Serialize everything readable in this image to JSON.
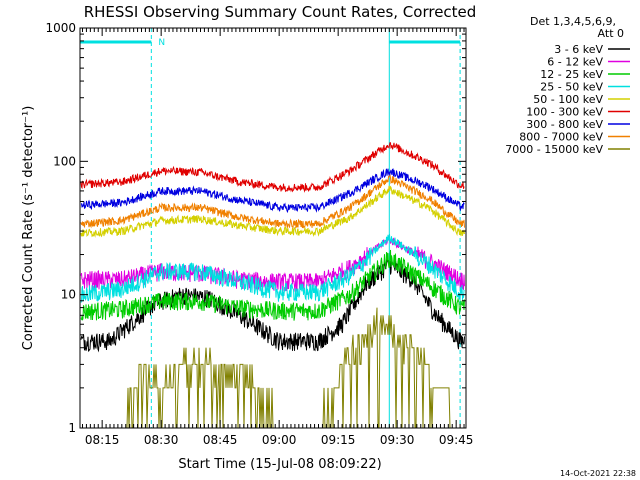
{
  "chart_data": {
    "type": "line",
    "title": "RHESSI Observing Summary Count Rates, Corrected",
    "xlabel": "Start Time (15-Jul-08 08:09:22)",
    "ylabel": "Corrected Count Rate (s⁻¹ detector⁻¹)",
    "y_scale": "log",
    "ylim": [
      1,
      1000
    ],
    "xlim": [
      "08:09:22",
      "09:47:30"
    ],
    "yticks": [
      "1",
      "10",
      "100",
      "1000"
    ],
    "xticks": [
      "08:15",
      "08:30",
      "08:45",
      "09:00",
      "09:15",
      "09:30",
      "09:45"
    ],
    "legend_header": [
      "Det 1,3,4,5,6,9,",
      "Att 0"
    ],
    "legend_position": "right",
    "footer_date": "14-Oct-2021 22:38",
    "flag_label": "N",
    "flag_bars": [
      {
        "start": "08:09:22",
        "end": "08:27:30"
      },
      {
        "start": "09:28:00",
        "end": "09:46:00"
      }
    ],
    "vertical_lines_solid": [
      "08:09:22",
      "09:28:00"
    ],
    "vertical_lines_dashed": [
      "08:27:30",
      "09:46:00"
    ],
    "series": [
      {
        "name": "3 - 6 keV",
        "color": "#000000",
        "x": [
          "08:10",
          "08:17",
          "08:22",
          "08:28",
          "08:35",
          "08:42",
          "08:50",
          "09:00",
          "09:10",
          "09:16",
          "09:22",
          "09:28",
          "09:34",
          "09:40",
          "09:46"
        ],
        "values": [
          4.5,
          4.5,
          6,
          8.5,
          10,
          9.5,
          7,
          4.5,
          4.5,
          6,
          12,
          17,
          13,
          7,
          4.5
        ]
      },
      {
        "name": "6 - 12 keV",
        "color": "#e000e0",
        "x": [
          "08:10",
          "08:20",
          "08:30",
          "08:40",
          "08:50",
          "09:00",
          "09:10",
          "09:18",
          "09:28",
          "09:38",
          "09:46"
        ],
        "values": [
          13,
          13,
          15,
          14.5,
          13,
          12.5,
          12.5,
          16,
          26,
          18,
          13
        ]
      },
      {
        "name": "12 - 25 keV",
        "color": "#00cc00",
        "x": [
          "08:10",
          "08:20",
          "08:30",
          "08:40",
          "08:50",
          "09:00",
          "09:10",
          "09:18",
          "09:28",
          "09:38",
          "09:46"
        ],
        "values": [
          7.5,
          7.8,
          9,
          9,
          8,
          7.6,
          7.6,
          10,
          19,
          12,
          8
        ]
      },
      {
        "name": "25 - 50 keV",
        "color": "#00e0e0",
        "x": [
          "08:10",
          "08:20",
          "08:30",
          "08:40",
          "08:50",
          "09:00",
          "09:10",
          "09:18",
          "09:28",
          "09:38",
          "09:46"
        ],
        "values": [
          10,
          11,
          15,
          15,
          12.5,
          10.5,
          10.5,
          14,
          27,
          17,
          10.5
        ]
      },
      {
        "name": "50 - 100 keV",
        "color": "#d4d000",
        "x": [
          "08:10",
          "08:20",
          "08:30",
          "08:40",
          "08:50",
          "09:00",
          "09:10",
          "09:18",
          "09:28",
          "09:38",
          "09:46"
        ],
        "values": [
          29,
          30,
          36,
          37,
          33,
          30,
          30,
          38,
          62,
          45,
          29
        ]
      },
      {
        "name": "100 - 300 keV",
        "color": "#e00000",
        "x": [
          "08:10",
          "08:20",
          "08:30",
          "08:40",
          "08:50",
          "09:00",
          "09:10",
          "09:18",
          "09:28",
          "09:38",
          "09:46"
        ],
        "values": [
          67,
          70,
          85,
          83,
          70,
          64,
          64,
          85,
          135,
          98,
          66
        ]
      },
      {
        "name": "300 - 800 keV",
        "color": "#0000e0",
        "x": [
          "08:10",
          "08:20",
          "08:30",
          "08:40",
          "08:50",
          "09:00",
          "09:10",
          "09:18",
          "09:28",
          "09:38",
          "09:46"
        ],
        "values": [
          47,
          49,
          60,
          60,
          51,
          45,
          45,
          58,
          85,
          65,
          46
        ]
      },
      {
        "name": "800 - 7000 keV",
        "color": "#f08000",
        "x": [
          "08:10",
          "08:20",
          "08:30",
          "08:40",
          "08:50",
          "09:00",
          "09:10",
          "09:18",
          "09:28",
          "09:38",
          "09:46"
        ],
        "values": [
          34,
          36,
          45,
          45,
          38,
          34,
          34,
          45,
          75,
          53,
          34
        ]
      },
      {
        "name": "7000 - 15000 keV",
        "color": "#808000",
        "x": [
          "08:10",
          "08:20",
          "08:25",
          "08:30",
          "08:35",
          "08:42",
          "08:48",
          "08:55",
          "09:00",
          "09:10",
          "09:16",
          "09:20",
          "09:25",
          "09:30",
          "09:36",
          "09:42",
          "09:46"
        ],
        "values": [
          1,
          1,
          2.5,
          2,
          3,
          3,
          2.5,
          2,
          1,
          1,
          3,
          4,
          6,
          5,
          3,
          2,
          1
        ]
      }
    ]
  }
}
